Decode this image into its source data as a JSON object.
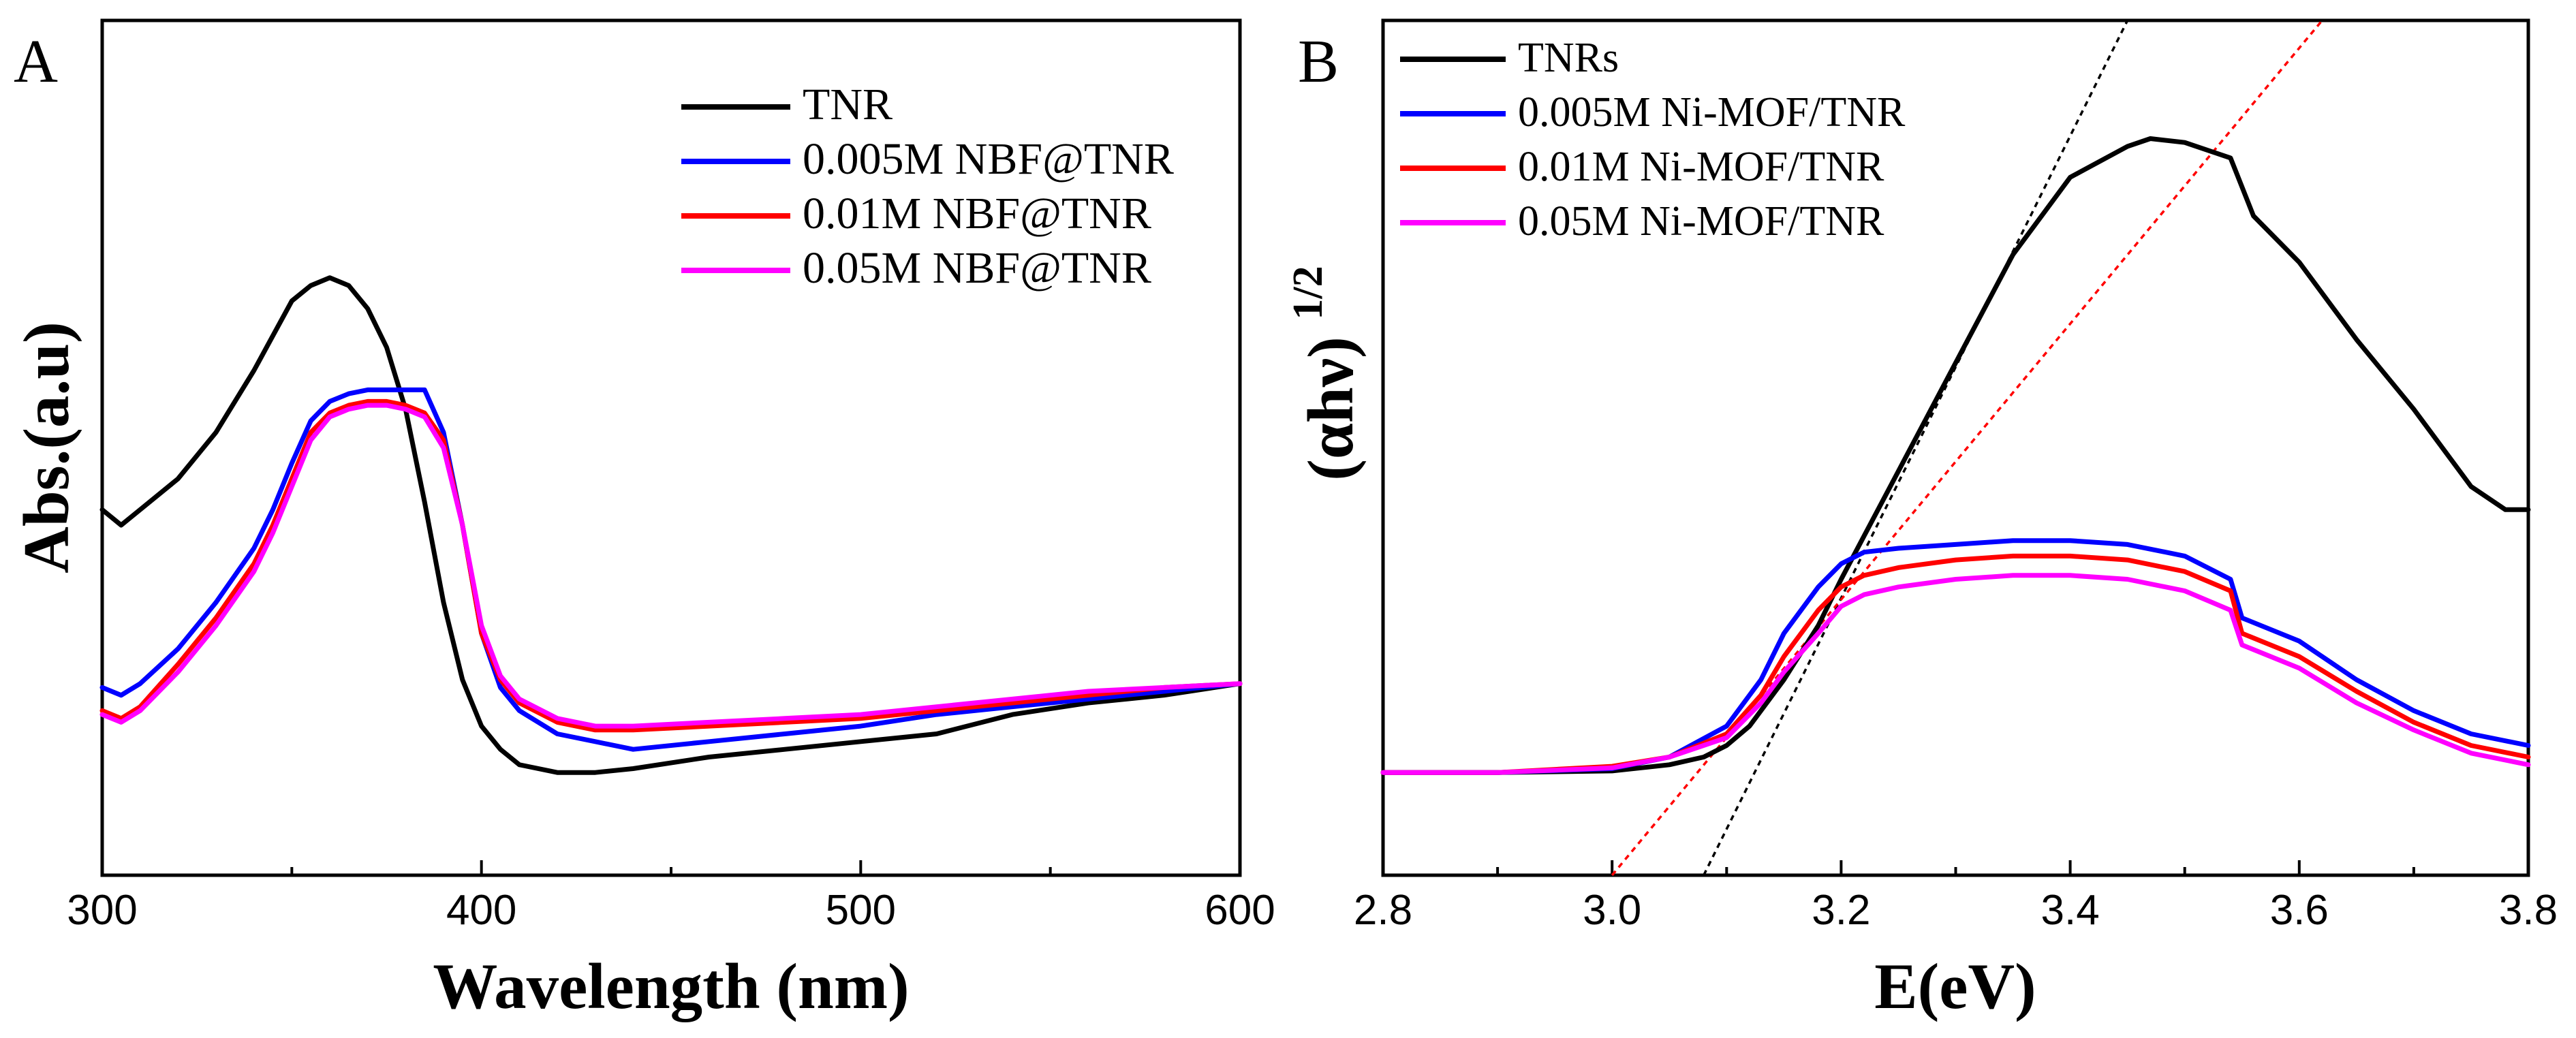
{
  "chart_data": [
    {
      "type": "line",
      "panel_label": "A",
      "xlabel": "Wavelength (nm)",
      "ylabel": "Abs.(a.u)",
      "xlim": [
        300,
        600
      ],
      "x_ticks": [
        300,
        400,
        500,
        600
      ],
      "y_ticks_labeled": false,
      "ylim": [
        0,
        1
      ],
      "legend_position": "top-right",
      "series": [
        {
          "name": "TNR",
          "color": "#000000",
          "x": [
            300,
            305,
            310,
            320,
            330,
            340,
            350,
            355,
            360,
            365,
            370,
            375,
            380,
            385,
            390,
            395,
            400,
            405,
            410,
            420,
            430,
            440,
            460,
            480,
            500,
            520,
            540,
            560,
            580,
            600
          ],
          "y": [
            0.42,
            0.4,
            0.42,
            0.46,
            0.52,
            0.6,
            0.69,
            0.71,
            0.72,
            0.71,
            0.68,
            0.63,
            0.55,
            0.43,
            0.3,
            0.2,
            0.14,
            0.11,
            0.09,
            0.08,
            0.08,
            0.085,
            0.1,
            0.11,
            0.12,
            0.13,
            0.155,
            0.17,
            0.18,
            0.195
          ]
        },
        {
          "name": "0.005M NBF@TNR",
          "color": "#0000ff",
          "x": [
            300,
            305,
            310,
            320,
            330,
            340,
            345,
            350,
            355,
            360,
            365,
            370,
            375,
            380,
            385,
            390,
            395,
            400,
            405,
            410,
            420,
            430,
            440,
            460,
            480,
            500,
            520,
            540,
            560,
            580,
            600
          ],
          "y": [
            0.19,
            0.18,
            0.195,
            0.24,
            0.3,
            0.37,
            0.42,
            0.48,
            0.535,
            0.56,
            0.57,
            0.575,
            0.575,
            0.575,
            0.575,
            0.52,
            0.4,
            0.26,
            0.19,
            0.16,
            0.13,
            0.12,
            0.11,
            0.12,
            0.13,
            0.14,
            0.155,
            0.165,
            0.175,
            0.185,
            0.195
          ]
        },
        {
          "name": "0.01M NBF@TNR",
          "color": "#ff0000",
          "x": [
            300,
            305,
            310,
            320,
            330,
            340,
            345,
            350,
            355,
            360,
            365,
            370,
            375,
            380,
            385,
            390,
            395,
            400,
            405,
            410,
            420,
            430,
            440,
            460,
            480,
            500,
            520,
            540,
            560,
            580,
            600
          ],
          "y": [
            0.16,
            0.15,
            0.165,
            0.22,
            0.28,
            0.35,
            0.4,
            0.46,
            0.52,
            0.545,
            0.555,
            0.56,
            0.56,
            0.555,
            0.545,
            0.51,
            0.4,
            0.26,
            0.2,
            0.17,
            0.145,
            0.135,
            0.135,
            0.14,
            0.145,
            0.15,
            0.16,
            0.17,
            0.18,
            0.19,
            0.195
          ]
        },
        {
          "name": "0.05M NBF@TNR",
          "color": "#ff00ff",
          "x": [
            300,
            305,
            310,
            320,
            330,
            340,
            345,
            350,
            355,
            360,
            365,
            370,
            375,
            380,
            385,
            390,
            395,
            400,
            405,
            410,
            420,
            430,
            440,
            460,
            480,
            500,
            520,
            540,
            560,
            580,
            600
          ],
          "y": [
            0.155,
            0.145,
            0.16,
            0.21,
            0.27,
            0.34,
            0.39,
            0.45,
            0.51,
            0.54,
            0.55,
            0.555,
            0.555,
            0.55,
            0.54,
            0.5,
            0.4,
            0.27,
            0.205,
            0.175,
            0.15,
            0.14,
            0.14,
            0.145,
            0.15,
            0.155,
            0.165,
            0.175,
            0.185,
            0.19,
            0.195
          ]
        }
      ]
    },
    {
      "type": "line",
      "panel_label": "B",
      "xlabel": "E(eV)",
      "ylabel": "(αhν)",
      "ylabel_sup": "1/2",
      "xlim": [
        2.8,
        3.8
      ],
      "x_ticks": [
        2.8,
        3.0,
        3.2,
        3.4,
        3.6,
        3.8
      ],
      "y_ticks_labeled": false,
      "ylim": [
        0,
        1
      ],
      "legend_position": "top-left",
      "series": [
        {
          "name": "TNRs",
          "color": "#000000",
          "x": [
            2.8,
            2.9,
            3.0,
            3.05,
            3.08,
            3.1,
            3.12,
            3.15,
            3.18,
            3.2,
            3.25,
            3.3,
            3.35,
            3.4,
            3.45,
            3.47,
            3.5,
            3.54,
            3.56,
            3.6,
            3.65,
            3.7,
            3.75,
            3.78,
            3.8
          ],
          "y": [
            0.08,
            0.08,
            0.082,
            0.09,
            0.1,
            0.115,
            0.14,
            0.2,
            0.27,
            0.33,
            0.47,
            0.61,
            0.75,
            0.85,
            0.89,
            0.9,
            0.895,
            0.875,
            0.8,
            0.74,
            0.64,
            0.55,
            0.45,
            0.42,
            0.42
          ]
        },
        {
          "name": "0.005M Ni-MOF/TNR",
          "color": "#0000ff",
          "x": [
            2.8,
            2.9,
            3.0,
            3.05,
            3.1,
            3.13,
            3.15,
            3.18,
            3.2,
            3.22,
            3.25,
            3.3,
            3.35,
            3.4,
            3.45,
            3.5,
            3.54,
            3.55,
            3.6,
            3.65,
            3.7,
            3.75,
            3.8
          ],
          "y": [
            0.08,
            0.08,
            0.085,
            0.1,
            0.14,
            0.2,
            0.26,
            0.32,
            0.35,
            0.365,
            0.37,
            0.375,
            0.38,
            0.38,
            0.375,
            0.36,
            0.33,
            0.28,
            0.25,
            0.2,
            0.16,
            0.13,
            0.115
          ]
        },
        {
          "name": "0.01M Ni-MOF/TNR",
          "color": "#ff0000",
          "x": [
            2.8,
            2.9,
            3.0,
            3.05,
            3.1,
            3.13,
            3.15,
            3.18,
            3.2,
            3.22,
            3.25,
            3.3,
            3.35,
            3.4,
            3.45,
            3.5,
            3.54,
            3.55,
            3.6,
            3.65,
            3.7,
            3.75,
            3.8
          ],
          "y": [
            0.08,
            0.08,
            0.088,
            0.1,
            0.13,
            0.18,
            0.23,
            0.29,
            0.32,
            0.335,
            0.345,
            0.355,
            0.36,
            0.36,
            0.355,
            0.34,
            0.315,
            0.26,
            0.23,
            0.185,
            0.145,
            0.115,
            0.1
          ]
        },
        {
          "name": "0.05M Ni-MOF/TNR",
          "color": "#ff00ff",
          "x": [
            2.8,
            2.9,
            3.0,
            3.05,
            3.1,
            3.13,
            3.15,
            3.18,
            3.2,
            3.22,
            3.25,
            3.3,
            3.35,
            3.4,
            3.45,
            3.5,
            3.54,
            3.55,
            3.6,
            3.65,
            3.7,
            3.75,
            3.8
          ],
          "y": [
            0.08,
            0.08,
            0.086,
            0.1,
            0.125,
            0.17,
            0.21,
            0.26,
            0.295,
            0.31,
            0.32,
            0.33,
            0.335,
            0.335,
            0.33,
            0.315,
            0.29,
            0.245,
            0.215,
            0.17,
            0.135,
            0.105,
            0.09
          ]
        }
      ],
      "fit_lines": [
        {
          "color": "#000000",
          "style": "dotted",
          "x": [
            3.08,
            3.45
          ],
          "y": [
            0.0,
            1.0
          ]
        },
        {
          "color": "#ff0000",
          "style": "dotted",
          "x": [
            3.0,
            3.62
          ],
          "y": [
            0.0,
            1.0
          ]
        }
      ]
    }
  ]
}
